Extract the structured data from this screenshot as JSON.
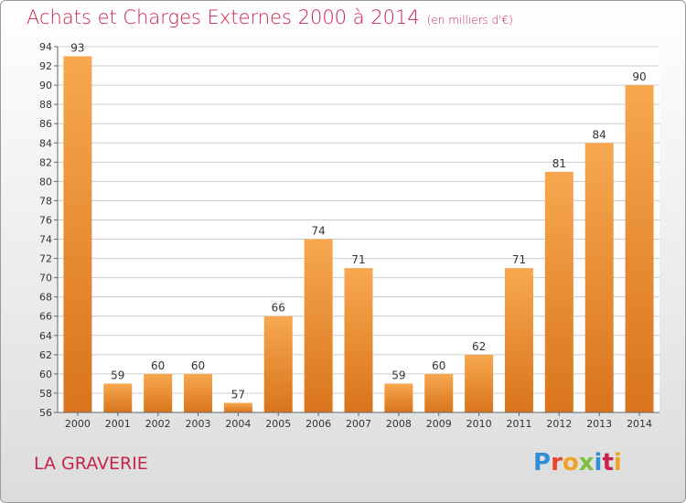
{
  "header": {
    "title": "Achats et Charges Externes 2000 à 2014",
    "subtitle": "(en milliers d'€)"
  },
  "footer": {
    "city": "LA GRAVERIE",
    "logo_text": "Proxiti"
  },
  "chart_data": {
    "type": "bar",
    "title": "Achats et Charges Externes 2000 à 2014",
    "subtitle": "(en milliers d'€)",
    "categories": [
      "2000",
      "2001",
      "2002",
      "2003",
      "2004",
      "2005",
      "2006",
      "2007",
      "2008",
      "2009",
      "2010",
      "2011",
      "2012",
      "2013",
      "2014"
    ],
    "values": [
      93,
      59,
      60,
      60,
      57,
      66,
      74,
      71,
      59,
      60,
      62,
      71,
      81,
      84,
      90
    ],
    "ylim": [
      56,
      94
    ],
    "yticks": [
      56,
      58,
      60,
      62,
      64,
      66,
      68,
      70,
      72,
      74,
      76,
      78,
      80,
      82,
      84,
      86,
      88,
      90,
      92,
      94
    ],
    "grid": true,
    "colors": {
      "bar_top": "#f7a84f",
      "bar_bottom": "#d9741c",
      "grid": "#cccccc"
    }
  }
}
